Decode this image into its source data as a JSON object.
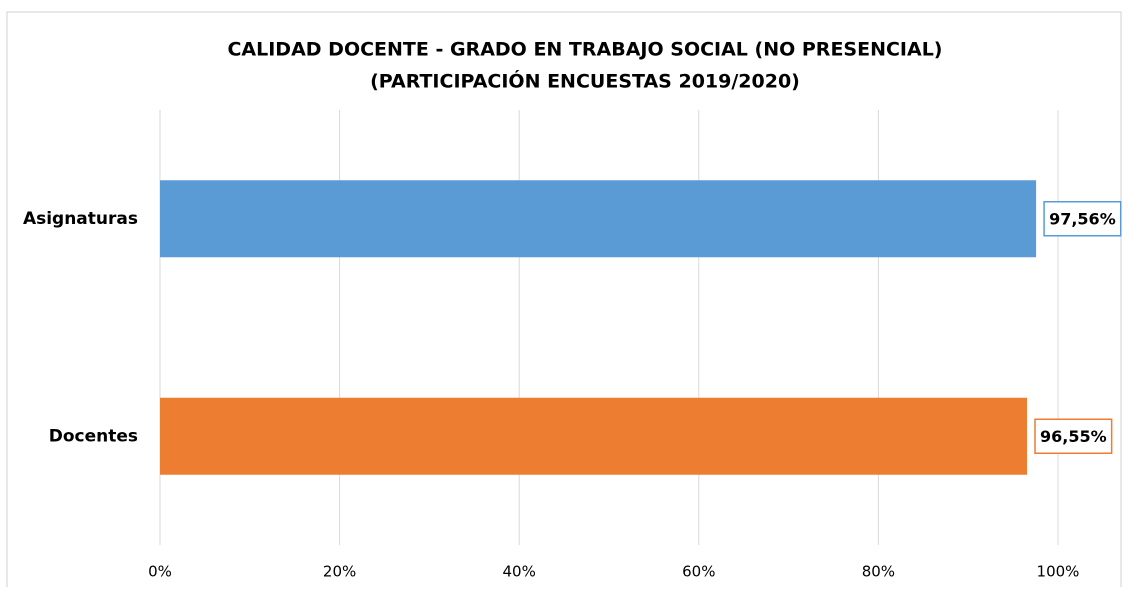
{
  "chart_data": {
    "type": "hbar",
    "title": [
      "CALIDAD DOCENTE - GRADO EN TRABAJO SOCIAL (NO PRESENCIAL)",
      "(PARTICIPACIÓN ENCUESTAS 2019/2020)"
    ],
    "categories": [
      "Asignaturas",
      "Docentes"
    ],
    "values": [
      97.56,
      96.55
    ],
    "value_labels": [
      "97,56%",
      "96,55%"
    ],
    "colors": [
      "#5b9bd5",
      "#ed7d31"
    ],
    "xlim": [
      0,
      100
    ],
    "xticks": [
      {
        "value": 0,
        "label": "0%"
      },
      {
        "value": 20,
        "label": "20%"
      },
      {
        "value": 40,
        "label": "40%"
      },
      {
        "value": 60,
        "label": "60%"
      },
      {
        "value": 80,
        "label": "80%"
      },
      {
        "value": 100,
        "label": "100%"
      }
    ],
    "grid": true
  }
}
